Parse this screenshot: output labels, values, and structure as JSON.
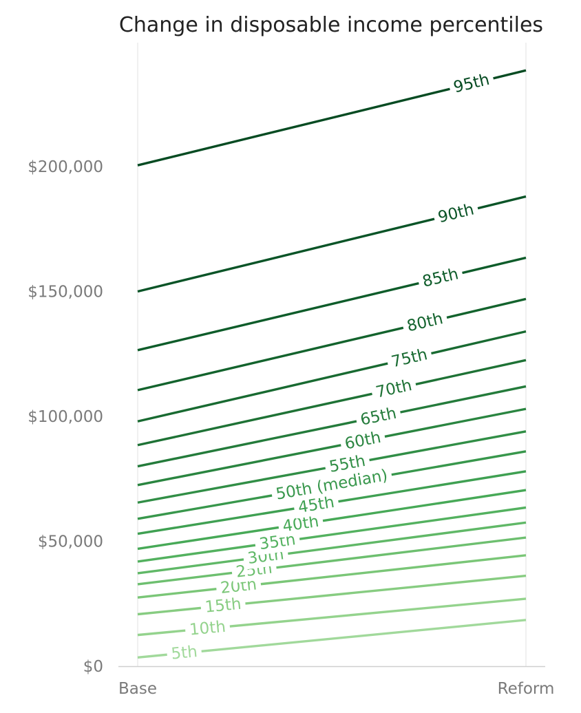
{
  "chart_data": {
    "type": "line",
    "title": "Change in disposable income percentiles",
    "xlabel": "",
    "ylabel": "",
    "categories": [
      "Base",
      "Reform"
    ],
    "ylim": [
      0,
      250000
    ],
    "y_ticks": [
      {
        "value": 0,
        "label": "$0"
      },
      {
        "value": 50000,
        "label": "$50,000"
      },
      {
        "value": 100000,
        "label": "$100,000"
      },
      {
        "value": 150000,
        "label": "$150,000"
      },
      {
        "value": 200000,
        "label": "$200,000"
      }
    ],
    "grid": "vertical lines at categories",
    "series": [
      {
        "name": "5th",
        "values": [
          3500,
          18500
        ],
        "color": "#a1d99b",
        "label_at": 0.12
      },
      {
        "name": "10th",
        "values": [
          12500,
          27000
        ],
        "color": "#94d38d",
        "label_at": 0.18
      },
      {
        "name": "15th",
        "values": [
          20800,
          36200
        ],
        "color": "#87cc81",
        "label_at": 0.22
      },
      {
        "name": "20th",
        "values": [
          27500,
          44400
        ],
        "color": "#7ac677",
        "label_at": 0.26
      },
      {
        "name": "25th",
        "values": [
          32800,
          51500
        ],
        "color": "#6dbf6f",
        "label_at": 0.3
      },
      {
        "name": "30th",
        "values": [
          37200,
          57500
        ],
        "color": "#60b867",
        "label_at": 0.33
      },
      {
        "name": "35th",
        "values": [
          41900,
          63500
        ],
        "color": "#53b15f",
        "label_at": 0.36
      },
      {
        "name": "40th",
        "values": [
          47000,
          70500
        ],
        "color": "#47a957",
        "label_at": 0.42
      },
      {
        "name": "45th",
        "values": [
          53000,
          78000
        ],
        "color": "#3fa052",
        "label_at": 0.46
      },
      {
        "name": "50th (median)",
        "values": [
          59000,
          86000
        ],
        "color": "#38974c",
        "label_at": 0.5
      },
      {
        "name": "55th",
        "values": [
          65500,
          94000
        ],
        "color": "#318e46",
        "label_at": 0.54
      },
      {
        "name": "60th",
        "values": [
          72500,
          103000
        ],
        "color": "#2a8540",
        "label_at": 0.58
      },
      {
        "name": "65th",
        "values": [
          80000,
          112000
        ],
        "color": "#247b3b",
        "label_at": 0.62
      },
      {
        "name": "70th",
        "values": [
          88500,
          122500
        ],
        "color": "#1e7235",
        "label_at": 0.66
      },
      {
        "name": "75th",
        "values": [
          98000,
          134000
        ],
        "color": "#186a31",
        "label_at": 0.7
      },
      {
        "name": "80th",
        "values": [
          110500,
          147000
        ],
        "color": "#13632d",
        "label_at": 0.74
      },
      {
        "name": "85th",
        "values": [
          126500,
          163500
        ],
        "color": "#0e5c2a",
        "label_at": 0.78
      },
      {
        "name": "90th",
        "values": [
          150000,
          188000
        ],
        "color": "#0a5427",
        "label_at": 0.82
      },
      {
        "name": "95th",
        "values": [
          200500,
          238500
        ],
        "color": "#064b22",
        "label_at": 0.86
      }
    ]
  }
}
